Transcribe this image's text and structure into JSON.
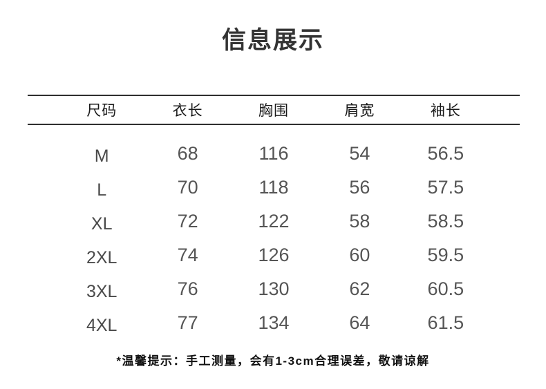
{
  "page": {
    "title": "信息展示",
    "note": "*温馨提示：手工测量，会有1-3cm合理误差，敬请谅解"
  },
  "colors": {
    "background": "#ffffff",
    "title_text": "#333333",
    "header_text": "#1a1a1a",
    "rule_line": "#2e2e2e",
    "size_text": "#4a4a4a",
    "number_text": "#555555",
    "note_text": "#111111"
  },
  "table": {
    "columns": [
      "尺码",
      "衣长",
      "胸围",
      "肩宽",
      "袖长"
    ],
    "rows": [
      {
        "size": "M",
        "values": [
          "68",
          "116",
          "54",
          "56.5"
        ]
      },
      {
        "size": "L",
        "values": [
          "70",
          "118",
          "56",
          "57.5"
        ]
      },
      {
        "size": "XL",
        "values": [
          "72",
          "122",
          "58",
          "58.5"
        ]
      },
      {
        "size": "2XL",
        "values": [
          "74",
          "126",
          "60",
          "59.5"
        ]
      },
      {
        "size": "3XL",
        "values": [
          "76",
          "130",
          "62",
          "60.5"
        ]
      },
      {
        "size": "4XL",
        "values": [
          "77",
          "134",
          "64",
          "61.5"
        ]
      }
    ]
  }
}
